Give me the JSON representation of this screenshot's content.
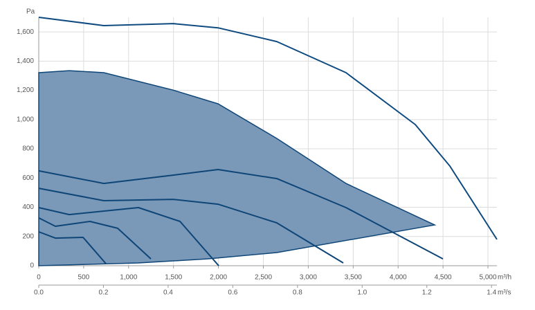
{
  "chart_data": {
    "type": "line",
    "y_unit": "Pa",
    "x_unit": "m³/h",
    "x2_unit": "m³/s",
    "xlim": [
      0,
      5100
    ],
    "xticks": [
      0,
      500,
      {
        "value": 1000,
        "label": "1,000"
      },
      {
        "value": 1500,
        "label": "1,500"
      },
      {
        "value": 2000,
        "label": "2,000"
      },
      {
        "value": 2500,
        "label": "2,500"
      },
      {
        "value": 3000,
        "label": "3,000"
      },
      {
        "value": 3500,
        "label": "3,500"
      },
      {
        "value": 4000,
        "label": "4,000"
      },
      {
        "value": 4500,
        "label": "4,500"
      },
      {
        "value": 5000,
        "label": "5,000"
      }
    ],
    "x2lim": [
      0,
      1.4167
    ],
    "x2ticks": [
      {
        "value": 0,
        "label": "0.0"
      },
      0.2,
      0.4,
      0.6,
      0.8,
      {
        "value": 1,
        "label": "1.0"
      },
      1.2,
      1.4
    ],
    "ylim": [
      0,
      1700
    ],
    "yticks": [
      0,
      200,
      400,
      600,
      800,
      {
        "value": 1000,
        "label": "1,000"
      },
      {
        "value": 1200,
        "label": "1,200"
      },
      {
        "value": 1400,
        "label": "1,400"
      },
      {
        "value": 1600,
        "label": "1,600"
      }
    ],
    "grid": true,
    "area": {
      "color": "#7a98b8",
      "line_color": "#0e4577",
      "x": [
        0,
        339,
        724,
        1495,
        1995,
        2650,
        3420,
        4407,
        2650,
        1880,
        1109,
        0
      ],
      "values": [
        1321,
        1335,
        1321,
        1202,
        1108,
        871,
        563,
        279,
        90,
        47,
        19,
        0
      ]
    },
    "series": [
      {
        "color": "#0e4a80",
        "x": [
          0,
          724,
          1495,
          1995,
          2650,
          3420,
          4191,
          4576,
          5100
        ],
        "values": [
          1700,
          1643,
          1657,
          1628,
          1534,
          1321,
          966,
          682,
          180
        ]
      },
      {
        "color": "#0e4577",
        "x": [
          0,
          724,
          1495,
          1995,
          2650,
          3420,
          4499
        ],
        "values": [
          649,
          563,
          620,
          658,
          596,
          398,
          47
        ]
      },
      {
        "color": "#0e4577",
        "x": [
          0,
          724,
          1495,
          1995,
          2650,
          3390
        ],
        "values": [
          530,
          445,
          454,
          421,
          293,
          19
        ]
      },
      {
        "color": "#0e4577",
        "x": [
          0,
          339,
          1109,
          1572,
          2003
        ],
        "values": [
          398,
          350,
          398,
          303,
          0
        ]
      },
      {
        "color": "#0e4577",
        "x": [
          0,
          185,
          570,
          878,
          1248
        ],
        "values": [
          327,
          270,
          303,
          256,
          47
        ]
      },
      {
        "color": "#0e4577",
        "x": [
          0,
          185,
          493,
          747
        ],
        "values": [
          232,
          189,
          194,
          14
        ]
      }
    ]
  }
}
